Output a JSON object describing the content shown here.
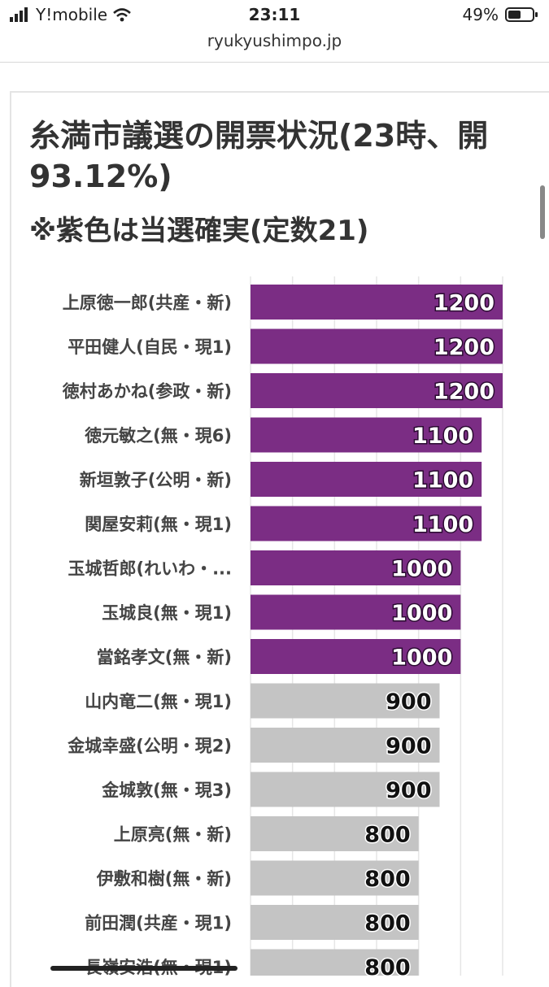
{
  "status_bar": {
    "carrier": "Y!mobile",
    "time": "23:11",
    "battery": "49%"
  },
  "browser": {
    "url": "ryukyushimpo.jp"
  },
  "colors": {
    "elected": "#7b2d84",
    "other": "#c4c4c4"
  },
  "chart_data": {
    "type": "bar",
    "orientation": "horizontal",
    "title": "糸満市議選の開票状況(23時、開票率93.12%)",
    "title_line1": "糸満市議選の開票状況(23時、開",
    "title_line2": "93.12%)",
    "subtitle": "※紫色は当選確実(定数21)",
    "xlim": [
      0,
      1200
    ],
    "categories": [
      "上原徳一郎(共産・新)",
      "平田健人(自民・現1)",
      "徳村あかね(参政・新)",
      "徳元敏之(無・現6)",
      "新垣敦子(公明・新)",
      "関屋安莉(無・現1)",
      "玉城哲郎(れいわ・...",
      "玉城良(無・現1)",
      "當銘孝文(無・新)",
      "山内竜二(無・現1)",
      "金城幸盛(公明・現2)",
      "金城敦(無・現3)",
      "上原亮(無・新)",
      "伊敷和樹(無・新)",
      "前田潤(共産・現1)",
      "長嶺安浩(無・現1)"
    ],
    "values": [
      1200,
      1200,
      1200,
      1100,
      1100,
      1100,
      1000,
      1000,
      1000,
      900,
      900,
      900,
      800,
      800,
      800,
      800
    ],
    "elected": [
      true,
      true,
      true,
      true,
      true,
      true,
      true,
      true,
      true,
      false,
      false,
      false,
      false,
      false,
      false,
      false
    ]
  }
}
